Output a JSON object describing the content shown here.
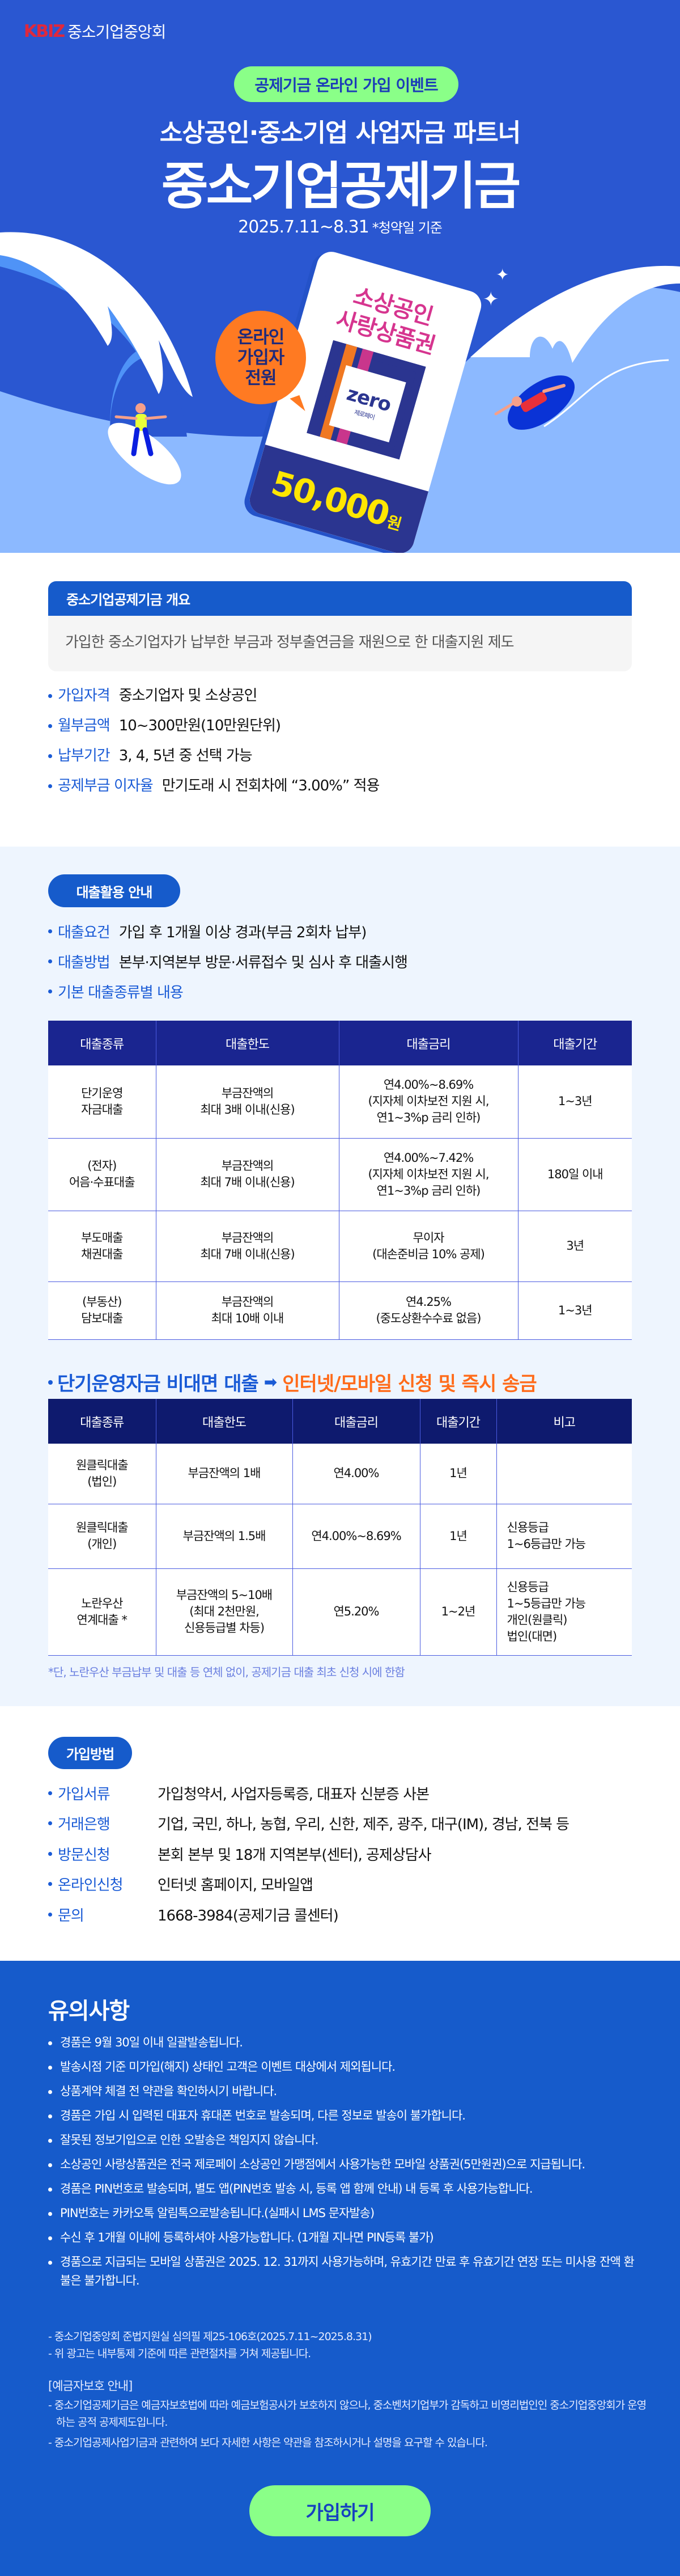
{
  "header": {
    "logo_mark": "KBIZ",
    "logo_text": "중소기업중앙회"
  },
  "hero": {
    "badge": "공제기금 온라인 가입 이벤트",
    "subtitle": "소상공인·중소기업 사업자금 파트너",
    "title": "중소기업공제기금",
    "date": "2025.7.11~8.31",
    "date_note": "*청약일 기준",
    "bubble": [
      "온라인",
      "가입자",
      "전원"
    ],
    "card_title": [
      "소상공인",
      "사랑상품권"
    ],
    "card_logo": "zero",
    "card_logo_sub": "제로페이",
    "amount": "50,000",
    "amount_unit": "원",
    "colors": {
      "background": "#2A57D1",
      "badge": "#8AFF88",
      "amount": "#FFE600"
    }
  },
  "overview": {
    "title": "중소기업공제기금 개요",
    "description": "가입한 중소기업자가 납부한 부금과 정부출연금을 재원으로 한 대출지원 제도",
    "items": [
      {
        "label": "가입자격",
        "value": "중소기업자 및 소상공인"
      },
      {
        "label": "월부금액",
        "value": "10~300만원(10만원단위)"
      },
      {
        "label": "납부기간",
        "value": "3, 4, 5년 중 선택 가능"
      },
      {
        "label": "공제부금 이자율",
        "value": "만기도래 시 전회차에 “3.00%” 적용"
      }
    ]
  },
  "loan": {
    "title": "대출활용 안내",
    "items": [
      {
        "label": "대출요건",
        "value": "가입 후 1개월 이상 경과(부금 2회차 납부)"
      },
      {
        "label": "대출방법",
        "value": "본부·지역본부 방문·서류접수 및 심사 후 대출시행"
      },
      {
        "label": "기본 대출종류별 내용",
        "value": ""
      }
    ],
    "table": {
      "headers": [
        "대출종류",
        "대출한도",
        "대출금리",
        "대출기간"
      ],
      "rows": [
        [
          "단기운영\n자금대출",
          "부금잔액의\n최대 3배 이내(신용)",
          "연4.00%~8.69%\n(지자체 이차보전 지원 시,\n연1~3%p 금리 인하)",
          "1~3년"
        ],
        [
          "(전자)\n어음·수표대출",
          "부금잔액의\n최대 7배 이내(신용)",
          "연4.00%~7.42%\n(지자체 이차보전 지원 시,\n연1~3%p 금리 인하)",
          "180일 이내"
        ],
        [
          "부도매출\n채권대출",
          "부금잔액의\n최대 7배 이내(신용)",
          "무이자\n(대손준비금 10% 공제)",
          "3년"
        ],
        [
          "(부동산)\n담보대출",
          "부금잔액의\n최대 10배 이내",
          "연4.25%\n(중도상환수수료 없음)",
          "1~3년"
        ]
      ]
    }
  },
  "nonface": {
    "heading": "단기운영자금 비대면 대출",
    "heading_highlight": "인터넷/모바일 신청 및 즉시 송금",
    "headers": [
      "대출종류",
      "대출한도",
      "대출금리",
      "대출기간",
      "비고"
    ],
    "rows": [
      [
        "원클릭대출\n(법인)",
        "부금잔액의 1배",
        "연4.00%",
        "1년",
        ""
      ],
      [
        "원클릭대출\n(개인)",
        "부금잔액의 1.5배",
        "연4.00%~8.69%",
        "1년",
        "신용등급\n1~6등급만 가능"
      ],
      [
        "노란우산\n연계대출 *",
        "부금잔액의 5~10배\n(최대 2천만원,\n신용등급별 차등)",
        "연5.20%",
        "1~2년",
        "신용등급\n1~5등급만 가능\n개인(원클릭)\n법인(대면)"
      ]
    ],
    "footnote": "*단, 노란우산 부금납부 및 대출 등 연체 없이, 공제기금 대출 최초 신청 시에 한함"
  },
  "join": {
    "title": "가입방법",
    "items": [
      {
        "label": "가입서류",
        "value": "가입청약서, 사업자등록증, 대표자 신분증 사본"
      },
      {
        "label": "거래은행",
        "value": "기업, 국민, 하나, 농협, 우리, 신한, 제주, 광주, 대구(IM), 경남, 전북 등"
      },
      {
        "label": "방문신청",
        "value": "본회 본부 및 18개 지역본부(센터), 공제상담사"
      },
      {
        "label": "온라인신청",
        "value": "인터넷 홈페이지, 모바일앱"
      },
      {
        "label": "문의",
        "value": "1668-3984(공제기금 콜센터)"
      }
    ]
  },
  "notice": {
    "title": "유의사항",
    "items": [
      "경품은 9월 30일 이내 일괄발송됩니다.",
      "발송시점 기준 미가입(해지) 상태인 고객은 이벤트 대상에서 제외됩니다.",
      "상품계약 체결 전 약관을 확인하시기 바랍니다.",
      "경품은 가입 시 입력된 대표자 휴대폰 번호로 발송되며, 다른 정보로 발송이 불가합니다.",
      "잘못된 정보기입으로 인한 오발송은 책임지지 않습니다.",
      "소상공인 사랑상품권은 전국 제로페이 소상공인 가맹점에서 사용가능한 모바일 상품권(5만원권)으로 지급됩니다.",
      "경품은 PIN번호로 발송되며, 별도 앱(PIN번호 발송 시, 등록 앱 함께 안내) 내 등록 후 사용가능합니다.",
      "PIN번호는 카카오톡 알림톡으로발송됩니다.(실패시 LMS 문자발송)",
      "수신 후 1개월 이내에 등록하셔야 사용가능합니다. (1개월 지나면 PIN등록 불가)",
      "경품으로 지급되는 모바일 상품권은 2025. 12. 31까지 사용가능하며, 유효기간 만료 후 유효기간 연장 또는 미사용 잔액 환불은 불가합니다."
    ],
    "legal": [
      "- 중소기업중앙회 준법지원실 심의필 제25-106호(2025.7.11~2025.8.31)",
      "- 위 광고는 내부통제 기준에 따른 관련절차를 거쳐 제공됩니다."
    ],
    "deposit_title": "[예금자보호 안내]",
    "deposit_lines": [
      "- 중소기업공제기금은 예금자보호법에 따라 예금보험공사가 보호하지 않으나, 중소벤처기업부가 감독하고 비영리법인인 중소기업중앙회가 운영하는 공적 공제제도입니다.",
      "- 중소기업공제사업기금과 관련하여 보다 자세한 사항은 약관을 참조하시거나 설명을 요구할 수 있습니다."
    ],
    "cta": "가입하기"
  }
}
